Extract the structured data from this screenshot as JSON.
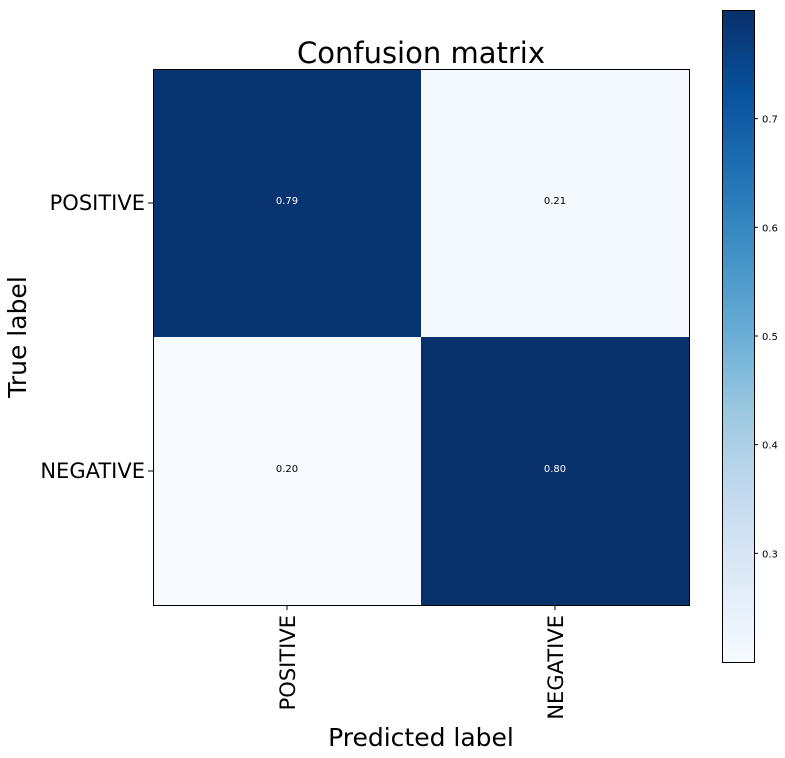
{
  "chart_data": {
    "type": "heatmap",
    "title": "Confusion matrix",
    "xlabel": "Predicted label",
    "ylabel": "True label",
    "x_categories": [
      "POSITIVE",
      "NEGATIVE"
    ],
    "y_categories": [
      "POSITIVE",
      "NEGATIVE"
    ],
    "values": [
      [
        0.79,
        0.21
      ],
      [
        0.2,
        0.8
      ]
    ],
    "cell_labels": [
      [
        "0.79",
        "0.21"
      ],
      [
        "0.20",
        "0.80"
      ]
    ],
    "colormap": "Blues",
    "colormap_low": "#f7fbff",
    "colormap_high": "#08306b",
    "colorbar": {
      "range": [
        0.2,
        0.8
      ],
      "ticks": [
        0.3,
        0.4,
        0.5,
        0.6,
        0.7
      ],
      "tick_labels": [
        "0.3",
        "0.4",
        "0.5",
        "0.6",
        "0.7"
      ]
    },
    "grid": false
  }
}
